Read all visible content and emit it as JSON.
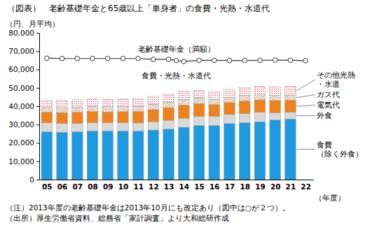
{
  "chart_data": {
    "type": "bar",
    "title": "（図表）　老齢基礎年金と65歳以上「単身者」の食費・光熱・水道代",
    "ylabel": "（円、月平均）",
    "xlabel": "（年度）",
    "annotations": [
      "食費・光熱・水道代"
    ],
    "notes": [
      "（注）2013年度の老齢基礎年金は2013年10月にも改定あり（図中は○が２つ）。",
      "（出所）厚生労働省資料、総務省「家計調査」より大和総研作成"
    ],
    "stacked": true,
    "grid": false,
    "legend": "right",
    "x": [
      5,
      6,
      7,
      8,
      9,
      10,
      11,
      12,
      13,
      14,
      15,
      16,
      17,
      18,
      19,
      20,
      21,
      22
    ],
    "xlim": [
      4.5,
      22.5
    ],
    "xticks": [
      {
        "value": 5,
        "label": "05"
      },
      {
        "value": 6,
        "label": "06"
      },
      {
        "value": 7,
        "label": "07"
      },
      {
        "value": 8,
        "label": "08"
      },
      {
        "value": 9,
        "label": "09"
      },
      10,
      11,
      12,
      13,
      14,
      15,
      16,
      17,
      18,
      19,
      20,
      21,
      22
    ],
    "ylim": [
      0,
      80000
    ],
    "yticks": [
      0,
      {
        "value": 10000,
        "label": "10,000"
      },
      {
        "value": 20000,
        "label": "20,000"
      },
      {
        "value": 30000,
        "label": "30,000"
      },
      {
        "value": 40000,
        "label": "40,000"
      },
      {
        "value": 50000,
        "label": "50,000"
      },
      {
        "value": 60000,
        "label": "60,000"
      },
      {
        "value": 70000,
        "label": "70,000"
      },
      {
        "value": 80000,
        "label": "80,000"
      }
    ],
    "series": [
      {
        "name": "食費\n（除く外食）",
        "color": "#1e9be0",
        "values": [
          26000,
          25800,
          26000,
          26500,
          26500,
          26500,
          26500,
          27000,
          27500,
          28500,
          29500,
          29500,
          30500,
          31000,
          31500,
          32500,
          33000,
          null
        ]
      },
      {
        "name": "外食",
        "color": "#d9d9d9",
        "values": [
          5000,
          4800,
          4800,
          4600,
          4600,
          4500,
          4400,
          4600,
          4800,
          4900,
          5000,
          5000,
          5000,
          5100,
          5200,
          3900,
          3700,
          null
        ]
      },
      {
        "name": "電気代",
        "color": "#f0821e",
        "values": [
          5800,
          5900,
          5900,
          6000,
          5800,
          6000,
          6200,
          6500,
          6900,
          7200,
          6900,
          6400,
          6500,
          6800,
          6700,
          6700,
          6600,
          null
        ]
      },
      {
        "name": "ガス代",
        "color": "#8b5a2b",
        "values": [
          2700,
          2800,
          2800,
          2900,
          2800,
          2800,
          2900,
          3000,
          3100,
          3200,
          3000,
          2700,
          2800,
          2900,
          2800,
          2800,
          2800,
          null
        ]
      },
      {
        "name": "その他光熱\n・水道",
        "color": "#e0506e",
        "values": [
          3900,
          4000,
          4000,
          4200,
          4100,
          4100,
          4200,
          4300,
          4400,
          4500,
          4300,
          4300,
          4400,
          4300,
          4600,
          4700,
          4700,
          null
        ]
      },
      {
        "name": "老齢基礎年金（満額）",
        "type": "line",
        "color": "#333333",
        "marker": "circle",
        "x": [
          5,
          6,
          7,
          8,
          9,
          10,
          11,
          12,
          13,
          13.5,
          14,
          15,
          16,
          17,
          18,
          19,
          20,
          21,
          22
        ],
        "values": [
          66208,
          66008,
          66008,
          66008,
          66008,
          66008,
          66008,
          65541,
          65541,
          64875,
          64400,
          65008,
          65008,
          64941,
          64941,
          65008,
          65141,
          65075,
          64816
        ]
      }
    ]
  }
}
